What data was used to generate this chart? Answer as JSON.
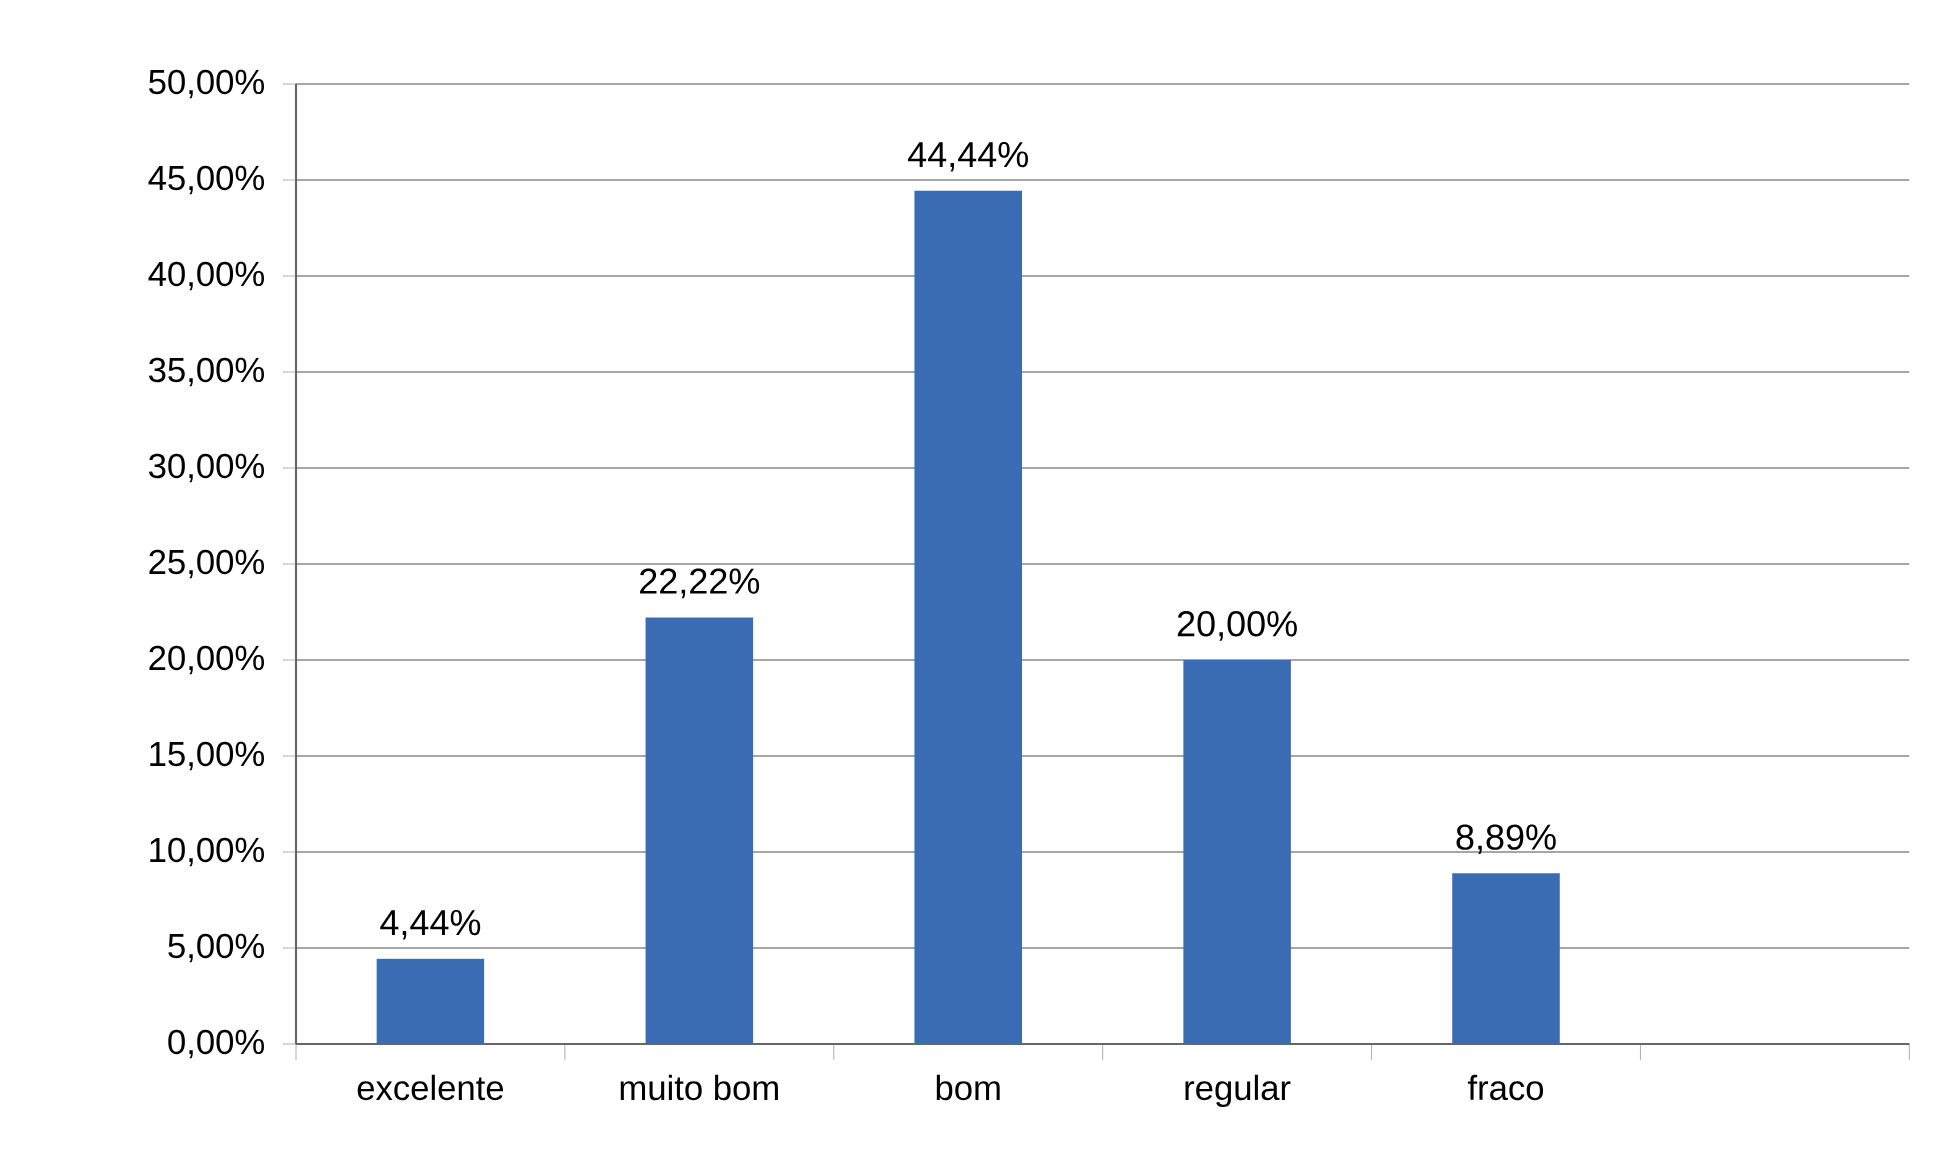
{
  "chart_data": {
    "type": "bar",
    "categories": [
      "excelente",
      "muito bom",
      "bom",
      "regular",
      "fraco",
      null
    ],
    "values": [
      4.44,
      22.22,
      44.44,
      20.0,
      8.89,
      null
    ],
    "value_labels": [
      "4,44%",
      "22,22%",
      "44,44%",
      "20,00%",
      "8,89%",
      null
    ],
    "color": "#3a6cb3",
    "ylim": [
      0,
      50
    ],
    "yticks": [
      {
        "value": 0,
        "label": "0,00%"
      },
      {
        "value": 5,
        "label": "5,00%"
      },
      {
        "value": 10,
        "label": "10,00%"
      },
      {
        "value": 15,
        "label": "15,00%"
      },
      {
        "value": 20,
        "label": "20,00%"
      },
      {
        "value": 25,
        "label": "25,00%"
      },
      {
        "value": 30,
        "label": "30,00%"
      },
      {
        "value": 35,
        "label": "35,00%"
      },
      {
        "value": 40,
        "label": "40,00%"
      },
      {
        "value": 45,
        "label": "45,00%"
      },
      {
        "value": 50,
        "label": "50,00%"
      }
    ],
    "grid": "y"
  }
}
